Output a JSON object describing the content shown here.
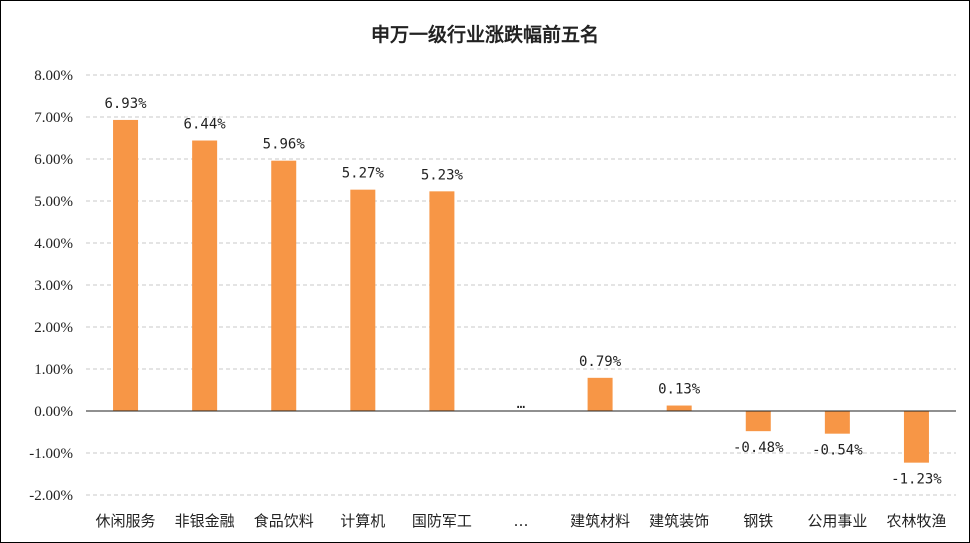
{
  "chart_data": {
    "type": "bar",
    "title": "申万一级行业涨跌幅前五名",
    "categories": [
      "休闲服务",
      "非银金融",
      "食品饮料",
      "计算机",
      "国防军工",
      "…",
      "建筑材料",
      "建筑装饰",
      "钢铁",
      "公用事业",
      "农林牧渔"
    ],
    "values": [
      6.93,
      6.44,
      5.96,
      5.27,
      5.23,
      null,
      0.79,
      0.13,
      -0.48,
      -0.54,
      -1.23
    ],
    "data_labels": [
      "6.93%",
      "6.44%",
      "5.96%",
      "5.27%",
      "5.23%",
      "…",
      "0.79%",
      "0.13%",
      "-0.48%",
      "-0.54%",
      "-1.23%"
    ],
    "ylim": [
      -2,
      8
    ],
    "yticks": [
      8,
      7,
      6,
      5,
      4,
      3,
      2,
      1,
      0,
      -1,
      -2
    ],
    "ytick_labels": [
      "8.00%",
      "7.00%",
      "6.00%",
      "5.00%",
      "4.00%",
      "3.00%",
      "2.00%",
      "1.00%",
      "0.00%",
      "-1.00%",
      "-2.00%"
    ],
    "xlabel": "",
    "ylabel": "",
    "grid": true,
    "legend": false,
    "bar_color": "#F79646"
  }
}
